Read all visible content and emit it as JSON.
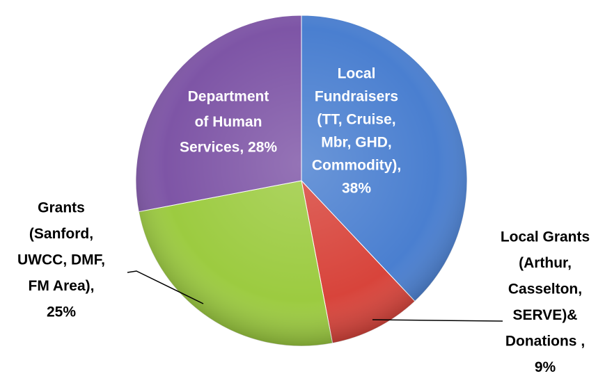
{
  "chart_data": {
    "type": "pie",
    "labels": [
      [
        "Local",
        "Fundraisers",
        "(TT, Cruise,",
        "Mbr, GHD,",
        "Commodity),",
        "38%"
      ],
      [
        "Local Grants",
        "(Arthur,",
        "Casselton,",
        "SERVE)&",
        "Donations ,",
        "9%"
      ],
      [
        "Grants",
        "(Sanford,",
        "UWCC, DMF,",
        "FM Area),",
        "25%"
      ],
      [
        "Department",
        "of Human",
        "Services, 28%"
      ]
    ],
    "values": [
      38,
      9,
      25,
      28
    ],
    "colors": [
      "#4a7fd0",
      "#d8443b",
      "#9ccb40",
      "#7e55a6"
    ]
  }
}
